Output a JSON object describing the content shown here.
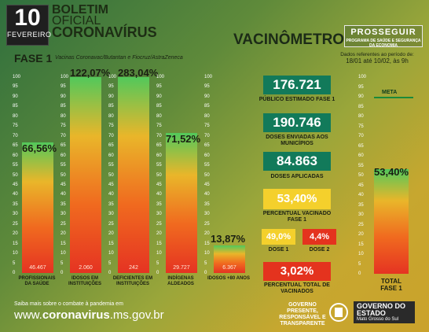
{
  "header": {
    "day": "10",
    "month": "FEVEREIRO",
    "title_l1": "BOLETIM",
    "title_l2": "OFICIAL",
    "title_l3": "CORONAVÍRUS",
    "vacinometro": "VACINÔMETRO",
    "prosseguir": "PROSSEGUIR",
    "prosseguir_sub": "PROGRAMA DE SAÚDE E SEGURANÇA DA ECONOMIA"
  },
  "fase": {
    "title": "FASE 1",
    "vacinas": "Vacinas Coronavac/Butantan e Fiocruz/AstraZeneca",
    "periodo_l1": "Dados referentes ao período de:",
    "periodo_l2": "18/01 até 10/02, às 9h"
  },
  "scale": [
    "100",
    "95",
    "90",
    "85",
    "80",
    "75",
    "70",
    "65",
    "60",
    "55",
    "50",
    "45",
    "40",
    "35",
    "30",
    "25",
    "20",
    "15",
    "10",
    "5",
    "0"
  ],
  "bars": [
    {
      "value": "66,56%",
      "pct": 66.56,
      "count": "46.467",
      "label": "PROFISSIONAIS DA SAÚDE"
    },
    {
      "value": "122,07%",
      "pct": 100,
      "count": "2.060",
      "label": "IDOSOS EM INSTITUIÇÕES"
    },
    {
      "value": "283,04%",
      "pct": 100,
      "count": "242",
      "label": "DEFICIENTES EM INSTITUIÇÕES"
    },
    {
      "value": "71,52%",
      "pct": 71.52,
      "count": "29.727",
      "label": "INDÍGENAS ALDEADOS"
    },
    {
      "value": "13,87%",
      "pct": 13.87,
      "count": "6.367",
      "label": "IDOSOS +80 ANOS"
    }
  ],
  "stats": {
    "publico": {
      "value": "176.721",
      "caption": "PÚBLICO ESTIMADO FASE 1"
    },
    "enviadas": {
      "value": "190.746",
      "caption": "DOSES ENVIADAS AOS MUNICÍPIOS"
    },
    "aplicadas": {
      "value": "84.863",
      "caption": "DOSES APLICADAS"
    },
    "percentual": {
      "value": "53,40%",
      "caption": "PERCENTUAL VACINADO FASE 1"
    },
    "dose1": {
      "value": "49,0%",
      "caption": "DOSE 1"
    },
    "dose2": {
      "value": "4,4%",
      "caption": "DOSE 2"
    },
    "total": {
      "value": "3,02%",
      "caption": "PERCENTUAL TOTAL DE VACINADOS"
    }
  },
  "total_bar": {
    "value": "53,40%",
    "pct": 53.4,
    "meta": "META",
    "caption_l1": "TOTAL",
    "caption_l2": "FASE 1"
  },
  "footer": {
    "saiba": "Saiba mais sobre o combate à pandemia em",
    "url_prefix": "www.",
    "url_bold": "coronavirus",
    "url_suffix": ".ms.gov.br",
    "governo_pres": "GOVERNO PRESENTE, RESPONSÁVEL E TRANSPARENTE",
    "gov_title": "GOVERNO DO ESTADO",
    "gov_sub": "Mato Grosso do Sul"
  },
  "colors": {
    "stat_green": "#127a5a",
    "yellow": "#f4d02c",
    "red": "#e4331e"
  }
}
